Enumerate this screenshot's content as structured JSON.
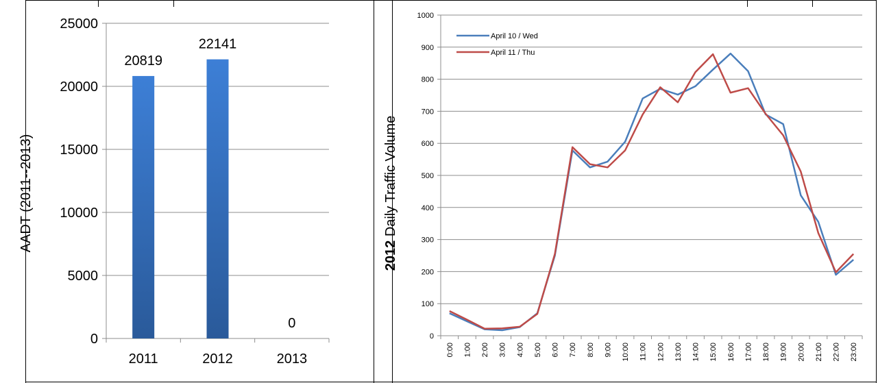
{
  "chart_data": [
    {
      "type": "bar",
      "categories": [
        "2011",
        "2012",
        "2013"
      ],
      "values": [
        20819,
        22141,
        0
      ],
      "data_labels": [
        "20819",
        "22141",
        "0"
      ],
      "ylabel": "AADT (2011--2013)",
      "xlabel": "",
      "ylim": [
        0,
        25000
      ],
      "yticks": [
        0,
        5000,
        10000,
        15000,
        20000,
        25000
      ],
      "grid": true,
      "bar_color": "#3a78c8"
    },
    {
      "type": "line",
      "x": [
        "0:00",
        "1:00",
        "2:00",
        "3:00",
        "4:00",
        "5:00",
        "6:00",
        "7:00",
        "8:00",
        "9:00",
        "10:00",
        "11:00",
        "12:00",
        "13:00",
        "14:00",
        "15:00",
        "16:00",
        "17:00",
        "18:00",
        "19:00",
        "20:00",
        "21:00",
        "22:00",
        "23:00"
      ],
      "series": [
        {
          "name": "April 10 / Wed",
          "color": "#4a7ebb",
          "values": [
            70,
            45,
            20,
            17,
            27,
            70,
            250,
            578,
            525,
            543,
            605,
            740,
            770,
            752,
            778,
            830,
            880,
            825,
            690,
            660,
            438,
            355,
            190,
            237
          ]
        },
        {
          "name": "April 11 / Thu",
          "color": "#be4b48",
          "values": [
            77,
            50,
            22,
            23,
            28,
            68,
            255,
            588,
            535,
            525,
            578,
            690,
            775,
            728,
            822,
            878,
            758,
            772,
            692,
            625,
            512,
            320,
            198,
            255
          ]
        }
      ],
      "ylabel_bold": "2012",
      "ylabel_rest": " Daily Traffic Volume",
      "xlabel": "",
      "ylim": [
        0,
        1000
      ],
      "yticks": [
        0,
        100,
        200,
        300,
        400,
        500,
        600,
        700,
        800,
        900,
        1000
      ],
      "grid": true,
      "legend_position": "top-left"
    }
  ]
}
